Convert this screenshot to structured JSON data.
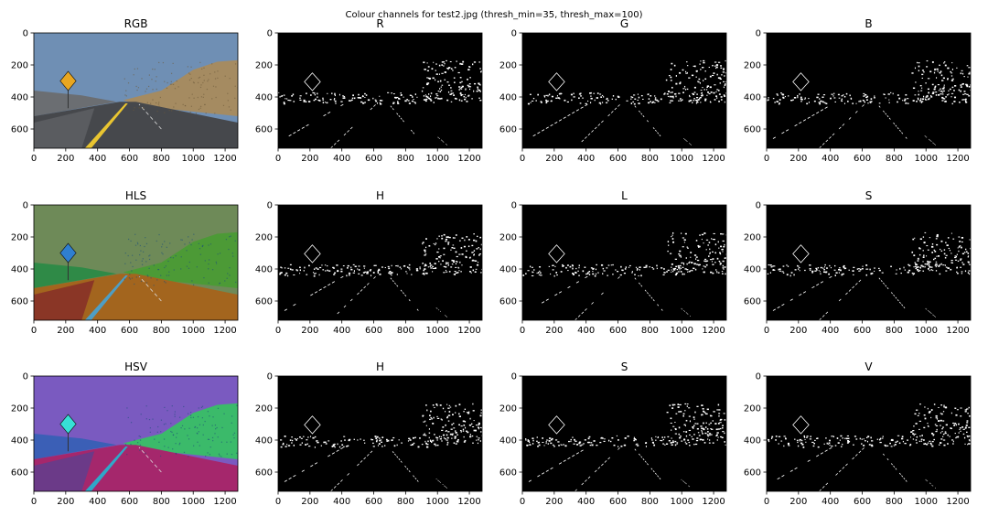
{
  "figure": {
    "title": "Colour channels for test2.jpg (thresh_min=35, thresh_max=100)"
  },
  "chart_data": {
    "type": "image",
    "grid": false,
    "rows": [
      {
        "space": "RGB",
        "panels": [
          "RGB",
          "R",
          "G",
          "B"
        ]
      },
      {
        "space": "HLS",
        "panels": [
          "HLS",
          "H",
          "L",
          "S"
        ]
      },
      {
        "space": "HSV",
        "panels": [
          "HSV",
          "H",
          "S",
          "V"
        ]
      }
    ],
    "xticks": [
      0,
      200,
      400,
      600,
      800,
      1000,
      1200
    ],
    "yticks": [
      0,
      200,
      400,
      600
    ],
    "xlim": [
      0,
      1280
    ],
    "ylim": [
      720,
      0
    ],
    "image_size": [
      1280,
      720
    ],
    "colors": {
      "binary_background": "#000000",
      "binary_edges": "#ffffff",
      "rgb_sky": "#6f8fb4",
      "rgb_hills": "#a58b61",
      "rgb_road": "#46484c",
      "rgb_lane_yellow": "#e9c531",
      "hls_sky": "#6e8a58",
      "hls_green": "#4c9a36",
      "hls_red": "#8a3626",
      "hls_orange": "#a3651e",
      "hls_lane": "#4e9ec4",
      "hsv_sky": "#7a5ac0",
      "hsv_blue": "#3b5fb6",
      "hsv_green": "#3bba6a",
      "hsv_road": "#a5276c",
      "hsv_lane": "#2fa8c9"
    }
  }
}
